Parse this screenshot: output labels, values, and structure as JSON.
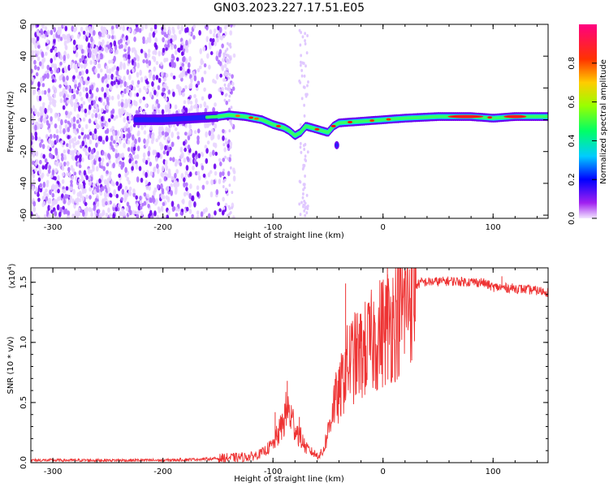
{
  "title": "GN03.2023.227.17.51.E05",
  "chart_data": [
    {
      "type": "heatmap",
      "xlabel": "Height of straight line (km)",
      "ylabel": "Frequency (Hz)",
      "xlim": [
        -320,
        150
      ],
      "ylim": [
        -62,
        60
      ],
      "x_ticks": [
        -300,
        -200,
        -100,
        0,
        100
      ],
      "y_ticks": [
        -60,
        -40,
        -20,
        0,
        20,
        40,
        60
      ],
      "colorbar": {
        "label": "Normalized spectral amplitude",
        "range": [
          0,
          1
        ],
        "ticks": [
          0.0,
          0.2,
          0.4,
          0.6,
          0.8
        ],
        "colormap": [
          "#f2e6ff",
          "#8a00ff",
          "#0000ff",
          "#00e5ff",
          "#00ff00",
          "#ffff00",
          "#ff8000",
          "#ff0000",
          "#ff007f"
        ]
      },
      "ridge": [
        {
          "x": -225,
          "y": 0
        },
        {
          "x": -200,
          "y": 0
        },
        {
          "x": -175,
          "y": 1
        },
        {
          "x": -150,
          "y": 2
        },
        {
          "x": -140,
          "y": 3
        },
        {
          "x": -125,
          "y": 2
        },
        {
          "x": -110,
          "y": 0
        },
        {
          "x": -100,
          "y": -3
        },
        {
          "x": -90,
          "y": -5
        },
        {
          "x": -85,
          "y": -7
        },
        {
          "x": -80,
          "y": -10
        },
        {
          "x": -75,
          "y": -8
        },
        {
          "x": -70,
          "y": -4
        },
        {
          "x": -60,
          "y": -6
        },
        {
          "x": -50,
          "y": -8
        },
        {
          "x": -45,
          "y": -4
        },
        {
          "x": -40,
          "y": -2
        },
        {
          "x": -20,
          "y": -1
        },
        {
          "x": 0,
          "y": 0
        },
        {
          "x": 20,
          "y": 1
        },
        {
          "x": 50,
          "y": 2
        },
        {
          "x": 80,
          "y": 2
        },
        {
          "x": 100,
          "y": 1
        },
        {
          "x": 120,
          "y": 2
        },
        {
          "x": 150,
          "y": 2
        }
      ]
    },
    {
      "type": "line",
      "xlabel": "Height of straight line (km)",
      "ylabel": "SNR (10 * v/v)",
      "y_multiplier": "(x10",
      "y_multiplier_exp": "4",
      "y_multiplier_close": ")",
      "xlim": [
        -320,
        150
      ],
      "ylim": [
        0,
        1.62
      ],
      "x_ticks": [
        -300,
        -200,
        -100,
        0,
        100
      ],
      "y_ticks": [
        0.0,
        0.5,
        1.0,
        1.5
      ],
      "color": "#ee3333",
      "series": [
        {
          "values": [
            {
              "x": -320,
              "y": 0.02
            },
            {
              "x": -250,
              "y": 0.02
            },
            {
              "x": -200,
              "y": 0.02
            },
            {
              "x": -160,
              "y": 0.03
            },
            {
              "x": -140,
              "y": 0.04
            },
            {
              "x": -120,
              "y": 0.05
            },
            {
              "x": -110,
              "y": 0.08
            },
            {
              "x": -100,
              "y": 0.15
            },
            {
              "x": -92,
              "y": 0.3
            },
            {
              "x": -87,
              "y": 0.45
            },
            {
              "x": -80,
              "y": 0.3
            },
            {
              "x": -70,
              "y": 0.12
            },
            {
              "x": -60,
              "y": 0.06
            },
            {
              "x": -55,
              "y": 0.08
            },
            {
              "x": -50,
              "y": 0.25
            },
            {
              "x": -45,
              "y": 0.5
            },
            {
              "x": -40,
              "y": 0.55
            },
            {
              "x": -35,
              "y": 0.75
            },
            {
              "x": -30,
              "y": 0.85
            },
            {
              "x": -20,
              "y": 0.9
            },
            {
              "x": -10,
              "y": 1.0
            },
            {
              "x": 0,
              "y": 1.1
            },
            {
              "x": 10,
              "y": 1.2
            },
            {
              "x": 20,
              "y": 1.3
            },
            {
              "x": 25,
              "y": 1.45
            },
            {
              "x": 35,
              "y": 1.5
            },
            {
              "x": 60,
              "y": 1.51
            },
            {
              "x": 90,
              "y": 1.5
            },
            {
              "x": 100,
              "y": 1.46
            },
            {
              "x": 120,
              "y": 1.45
            },
            {
              "x": 150,
              "y": 1.42
            }
          ]
        }
      ],
      "spikes": [
        {
          "x": -98,
          "y": 0.42
        },
        {
          "x": -87,
          "y": 0.68
        },
        {
          "x": -76,
          "y": 0.38
        },
        {
          "x": -40,
          "y": 0.72
        },
        {
          "x": -34,
          "y": 1.49
        },
        {
          "x": -27,
          "y": 0.82
        },
        {
          "x": -12,
          "y": 1.22
        },
        {
          "x": 4,
          "y": 1.62
        },
        {
          "x": 15,
          "y": 1.35
        },
        {
          "x": 108,
          "y": 1.55
        }
      ]
    }
  ]
}
